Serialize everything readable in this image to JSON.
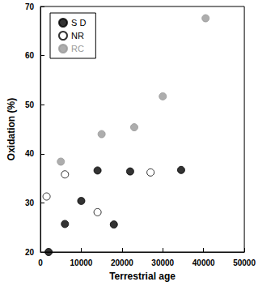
{
  "chart_data": {
    "type": "scatter",
    "x_label": "Terrestrial age",
    "y_label": "Oxidation (%)",
    "xlim": [
      0,
      50000
    ],
    "xticks": [
      0,
      10000,
      20000,
      30000,
      40000,
      50000
    ],
    "ylim": [
      20,
      70
    ],
    "yticks": [
      20,
      30,
      40,
      50,
      60,
      70
    ],
    "legend": "upper left",
    "grid": false,
    "series": [
      {
        "name": "S D",
        "color": "#000000",
        "marker": "filled",
        "x": [
          2000,
          6000,
          10000,
          14000,
          18000,
          22000,
          34500
        ],
        "values": [
          20,
          25.7,
          30.4,
          36.6,
          25.6,
          36.4,
          36.7
        ]
      },
      {
        "name": "NR",
        "color": "#000000",
        "marker": "open",
        "x": [
          1500,
          6000,
          14000,
          27000
        ],
        "values": [
          31.3,
          35.8,
          28.1,
          36.2
        ]
      },
      {
        "name": "RC",
        "color": "#999999",
        "marker": "filled",
        "x": [
          5000,
          15000,
          23000,
          30000,
          40500
        ],
        "values": [
          38.4,
          44,
          45.4,
          51.7,
          67.6
        ]
      }
    ]
  }
}
